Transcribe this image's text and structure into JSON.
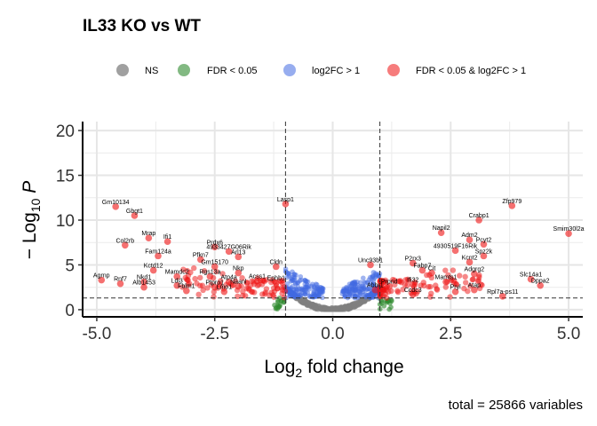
{
  "chart_data": {
    "type": "scatter",
    "title": "IL33 KO vs WT",
    "xlabel": "Log2 fold change",
    "ylabel": "−Log10 P",
    "xlim": [
      -5.3,
      5.3
    ],
    "ylim": [
      -0.8,
      21
    ],
    "x_ticks": [
      -5.0,
      -2.5,
      0.0,
      2.5,
      5.0
    ],
    "x_tick_labels": [
      "-5.0",
      "-2.5",
      "0.0",
      "2.5",
      "5.0"
    ],
    "y_ticks": [
      0,
      5,
      10,
      15,
      20
    ],
    "y_tick_labels": [
      "0",
      "5",
      "10",
      "15",
      "20"
    ],
    "grid": true,
    "legend_position": "top",
    "caption": "total = 25866 variables",
    "cutoffs": {
      "log2fc": [
        -1,
        1
      ],
      "neg_log10_p": 1.3
    },
    "legend": [
      {
        "key": "ns",
        "label": "NS",
        "color": "#808080"
      },
      {
        "key": "fdr",
        "label": "FDR < 0.05",
        "color": "#2e8b2e"
      },
      {
        "key": "fc",
        "label": "log2FC > 1",
        "color": "#4169e1"
      },
      {
        "key": "both",
        "label": "FDR < 0.05 & log2FC > 1",
        "color": "#ee1111"
      }
    ],
    "labeled_points": [
      {
        "label": "Zfp979",
        "x": 3.8,
        "y": 11.6
      },
      {
        "label": "Gm10134",
        "x": -4.6,
        "y": 11.5
      },
      {
        "label": "Lasp1",
        "x": -1.0,
        "y": 11.8
      },
      {
        "label": "Gbgt1",
        "x": -4.2,
        "y": 10.5
      },
      {
        "label": "Crabp1",
        "x": 3.1,
        "y": 10.0
      },
      {
        "label": "Smim30l2a",
        "x": 5.0,
        "y": 8.5
      },
      {
        "label": "Napil2",
        "x": 2.3,
        "y": 8.6
      },
      {
        "label": "Mrap",
        "x": -3.9,
        "y": 8.0
      },
      {
        "label": "Ifi1",
        "x": -3.5,
        "y": 7.6
      },
      {
        "label": "Adm2",
        "x": 2.9,
        "y": 7.8
      },
      {
        "label": "Pcyt2",
        "x": 3.2,
        "y": 7.3
      },
      {
        "label": "Col2rb",
        "x": -4.4,
        "y": 7.2
      },
      {
        "label": "Prdx6",
        "x": -2.5,
        "y": 7.0
      },
      {
        "label": "4933427G06Rik",
        "x": -2.2,
        "y": 6.5
      },
      {
        "label": "4930519F16Rik",
        "x": 2.6,
        "y": 6.6
      },
      {
        "label": "Fam124a",
        "x": -3.7,
        "y": 6.0
      },
      {
        "label": "Spz2k",
        "x": 3.2,
        "y": 6.0
      },
      {
        "label": "Pfkn7",
        "x": -2.8,
        "y": 5.6
      },
      {
        "label": "Arl13",
        "x": -2.0,
        "y": 5.9
      },
      {
        "label": "Kcnt2",
        "x": 2.9,
        "y": 5.3
      },
      {
        "label": "Unc93b1",
        "x": 0.8,
        "y": 5.0
      },
      {
        "label": "P2rx3",
        "x": 1.7,
        "y": 5.2
      },
      {
        "label": "Gm15170",
        "x": -2.5,
        "y": 4.8
      },
      {
        "label": "Kctd12",
        "x": -3.8,
        "y": 4.4
      },
      {
        "label": "Fabp7",
        "x": 1.9,
        "y": 4.4
      },
      {
        "label": "Cit",
        "x": 2.1,
        "y": 4.1
      },
      {
        "label": "Adgrg2",
        "x": 3.0,
        "y": 4.0
      },
      {
        "label": "Nkp",
        "x": -2.0,
        "y": 4.1
      },
      {
        "label": "Cldn",
        "x": -1.2,
        "y": 4.8
      },
      {
        "label": "Mamdc2",
        "x": -3.3,
        "y": 3.7
      },
      {
        "label": "Rgs13a",
        "x": -2.6,
        "y": 3.7
      },
      {
        "label": "Slc14a1",
        "x": 4.2,
        "y": 3.4
      },
      {
        "label": "Dppa2",
        "x": 4.4,
        "y": 2.7
      },
      {
        "label": "Agrnp",
        "x": -4.9,
        "y": 3.3
      },
      {
        "label": "Rnf7",
        "x": -4.5,
        "y": 2.9
      },
      {
        "label": "Nkd1",
        "x": -4.0,
        "y": 3.1
      },
      {
        "label": "Atp4a",
        "x": -2.2,
        "y": 3.1
      },
      {
        "label": "Acss1",
        "x": -1.6,
        "y": 3.2
      },
      {
        "label": "Ephb1",
        "x": -1.2,
        "y": 3.0
      },
      {
        "label": "Mamts1",
        "x": 2.4,
        "y": 3.1
      },
      {
        "label": "Ifi32",
        "x": 1.7,
        "y": 2.8
      },
      {
        "label": "Alb1453",
        "x": -4.0,
        "y": 2.5
      },
      {
        "label": "Ldi3",
        "x": -3.3,
        "y": 2.7
      },
      {
        "label": "Ptpro1",
        "x": -2.5,
        "y": 2.5
      },
      {
        "label": "Naanl",
        "x": -2.0,
        "y": 2.6
      },
      {
        "label": "Fblm1",
        "x": -3.1,
        "y": 2.1
      },
      {
        "label": "Lmo1",
        "x": -2.3,
        "y": 2.0
      },
      {
        "label": "Prpnd",
        "x": 1.2,
        "y": 2.6
      },
      {
        "label": "Abbr1",
        "x": 0.9,
        "y": 2.2
      },
      {
        "label": "Ccdc3",
        "x": 1.7,
        "y": 1.7
      },
      {
        "label": "Pryl",
        "x": 2.6,
        "y": 2.0
      },
      {
        "label": "Atap",
        "x": 3.0,
        "y": 2.2
      },
      {
        "label": "Rpl7a-ps11",
        "x": 3.6,
        "y": 1.5
      }
    ]
  }
}
